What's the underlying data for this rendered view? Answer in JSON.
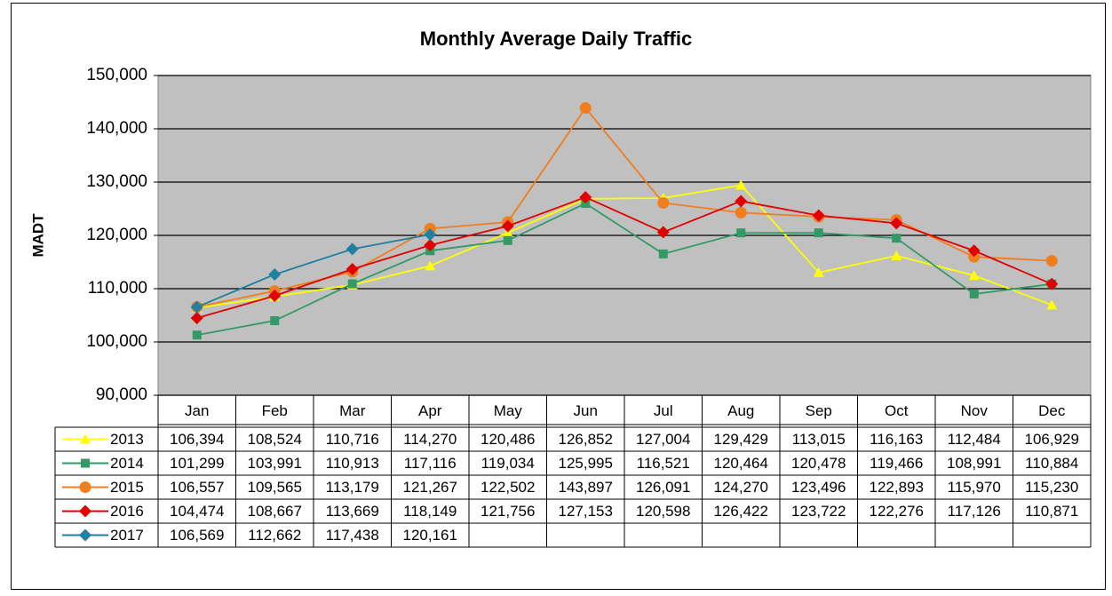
{
  "chart_data": {
    "type": "line",
    "title": "Monthly Average Daily Traffic",
    "y_label": "MADT",
    "categories": [
      "Jan",
      "Feb",
      "Mar",
      "Apr",
      "May",
      "Jun",
      "Jul",
      "Aug",
      "Sep",
      "Oct",
      "Nov",
      "Dec"
    ],
    "ylim": [
      90000,
      150000
    ],
    "yticks": [
      {
        "value": 90000,
        "label": "90,000"
      },
      {
        "value": 100000,
        "label": "100,000"
      },
      {
        "value": 110000,
        "label": "110,000"
      },
      {
        "value": 120000,
        "label": "120,000"
      },
      {
        "value": 130000,
        "label": "130,000"
      },
      {
        "value": 140000,
        "label": "140,000"
      },
      {
        "value": 150000,
        "label": "150,000"
      }
    ],
    "grid": true,
    "plot_background": "#c0c0c0",
    "data_table": true,
    "series": [
      {
        "name": "2013",
        "color": "#ffff00",
        "marker": "triangle",
        "values": [
          106394,
          108524,
          110716,
          114270,
          120486,
          126852,
          127004,
          129429,
          113015,
          116163,
          112484,
          106929
        ],
        "value_labels": [
          "106,394",
          "108,524",
          "110,716",
          "114,270",
          "120,486",
          "126,852",
          "127,004",
          "129,429",
          "113,015",
          "116,163",
          "112,484",
          "106,929"
        ]
      },
      {
        "name": "2014",
        "color": "#339966",
        "marker": "square",
        "values": [
          101299,
          103991,
          110913,
          117116,
          119034,
          125995,
          116521,
          120464,
          120478,
          119466,
          108991,
          110884
        ],
        "value_labels": [
          "101,299",
          "103,991",
          "110,913",
          "117,116",
          "119,034",
          "125,995",
          "116,521",
          "120,464",
          "120,478",
          "119,466",
          "108,991",
          "110,884"
        ]
      },
      {
        "name": "2015",
        "color": "#f07d1e",
        "marker": "circle",
        "values": [
          106557,
          109565,
          113179,
          121267,
          122502,
          143897,
          126091,
          124270,
          123496,
          122893,
          115970,
          115230
        ],
        "value_labels": [
          "106,557",
          "109,565",
          "113,179",
          "121,267",
          "122,502",
          "143,897",
          "126,091",
          "124,270",
          "123,496",
          "122,893",
          "115,970",
          "115,230"
        ]
      },
      {
        "name": "2016",
        "color": "#e00000",
        "marker": "diamond",
        "values": [
          104474,
          108667,
          113669,
          118149,
          121756,
          127153,
          120598,
          126422,
          123722,
          122276,
          117126,
          110871
        ],
        "value_labels": [
          "104,474",
          "108,667",
          "113,669",
          "118,149",
          "121,756",
          "127,153",
          "120,598",
          "126,422",
          "123,722",
          "122,276",
          "117,126",
          "110,871"
        ]
      },
      {
        "name": "2017",
        "color": "#1f80a0",
        "marker": "diamond",
        "values": [
          106569,
          112662,
          117438,
          120161,
          null,
          null,
          null,
          null,
          null,
          null,
          null,
          null
        ],
        "value_labels": [
          "106,569",
          "112,662",
          "117,438",
          "120,161",
          null,
          null,
          null,
          null,
          null,
          null,
          null,
          null
        ]
      }
    ]
  }
}
